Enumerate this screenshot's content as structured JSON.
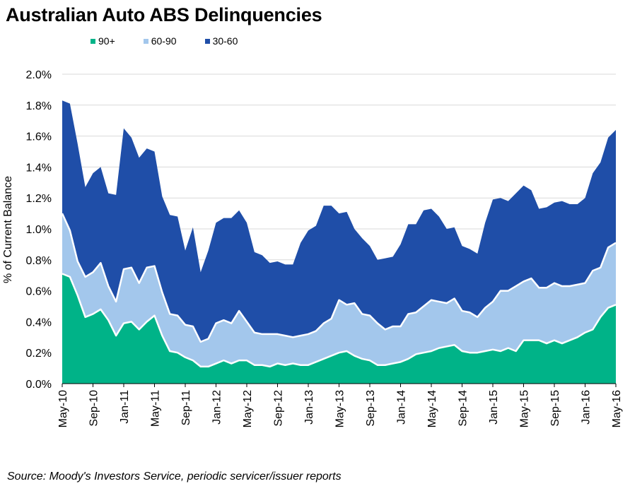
{
  "chart_data": {
    "type": "area",
    "stacked": true,
    "title": "Australian Auto ABS Delinquencies",
    "ylabel": "% of Current Balance",
    "xlabel": "",
    "ylim": [
      0,
      2.0
    ],
    "y_ticks": [
      "0.0%",
      "0.2%",
      "0.4%",
      "0.6%",
      "0.8%",
      "1.0%",
      "1.2%",
      "1.4%",
      "1.6%",
      "1.8%",
      "2.0%"
    ],
    "x_ticks": [
      "May-10",
      "Sep-10",
      "Jan-11",
      "May-11",
      "Sep-11",
      "Jan-12",
      "May-12",
      "Sep-12",
      "Jan-13",
      "May-13",
      "Sep-13",
      "Jan-14",
      "May-14",
      "Sep-14",
      "Jan-15",
      "May-15",
      "Sep-15",
      "Jan-16",
      "May-16"
    ],
    "months_count": 73,
    "series": [
      {
        "name": "90+",
        "color": "#00B388",
        "values": [
          0.71,
          0.69,
          0.57,
          0.43,
          0.45,
          0.48,
          0.41,
          0.31,
          0.39,
          0.4,
          0.35,
          0.4,
          0.44,
          0.31,
          0.21,
          0.2,
          0.17,
          0.15,
          0.11,
          0.11,
          0.13,
          0.15,
          0.13,
          0.15,
          0.15,
          0.12,
          0.12,
          0.11,
          0.13,
          0.12,
          0.13,
          0.12,
          0.12,
          0.14,
          0.16,
          0.18,
          0.2,
          0.21,
          0.18,
          0.16,
          0.15,
          0.12,
          0.12,
          0.13,
          0.14,
          0.16,
          0.19,
          0.2,
          0.21,
          0.23,
          0.24,
          0.25,
          0.21,
          0.2,
          0.2,
          0.21,
          0.22,
          0.21,
          0.23,
          0.21,
          0.28,
          0.28,
          0.28,
          0.26,
          0.28,
          0.26,
          0.28,
          0.3,
          0.33,
          0.35,
          0.43,
          0.49,
          0.51
        ]
      },
      {
        "name": "60-90",
        "color": "#A3C7EC",
        "values": [
          0.39,
          0.3,
          0.22,
          0.26,
          0.27,
          0.3,
          0.22,
          0.22,
          0.35,
          0.35,
          0.3,
          0.35,
          0.32,
          0.28,
          0.24,
          0.24,
          0.21,
          0.22,
          0.16,
          0.18,
          0.26,
          0.26,
          0.26,
          0.32,
          0.25,
          0.21,
          0.2,
          0.21,
          0.19,
          0.19,
          0.17,
          0.19,
          0.2,
          0.2,
          0.23,
          0.24,
          0.34,
          0.3,
          0.34,
          0.29,
          0.29,
          0.27,
          0.23,
          0.24,
          0.23,
          0.29,
          0.27,
          0.3,
          0.33,
          0.3,
          0.28,
          0.3,
          0.26,
          0.26,
          0.23,
          0.28,
          0.31,
          0.39,
          0.37,
          0.42,
          0.38,
          0.4,
          0.34,
          0.36,
          0.37,
          0.37,
          0.35,
          0.34,
          0.32,
          0.38,
          0.32,
          0.39,
          0.4
        ]
      },
      {
        "name": "30-60",
        "color": "#1F4EA8",
        "values": [
          0.73,
          0.82,
          0.76,
          0.58,
          0.64,
          0.62,
          0.6,
          0.69,
          0.91,
          0.84,
          0.81,
          0.77,
          0.74,
          0.62,
          0.64,
          0.64,
          0.48,
          0.64,
          0.45,
          0.57,
          0.65,
          0.66,
          0.68,
          0.65,
          0.64,
          0.52,
          0.51,
          0.46,
          0.47,
          0.46,
          0.47,
          0.6,
          0.67,
          0.68,
          0.76,
          0.73,
          0.56,
          0.6,
          0.48,
          0.49,
          0.45,
          0.41,
          0.46,
          0.45,
          0.53,
          0.58,
          0.57,
          0.62,
          0.59,
          0.55,
          0.48,
          0.46,
          0.42,
          0.41,
          0.41,
          0.55,
          0.66,
          0.6,
          0.58,
          0.6,
          0.62,
          0.57,
          0.51,
          0.52,
          0.52,
          0.55,
          0.53,
          0.52,
          0.55,
          0.63,
          0.68,
          0.71,
          0.73
        ]
      }
    ]
  },
  "source_note": "Source: Moody's Investors Service, periodic servicer/issuer reports"
}
